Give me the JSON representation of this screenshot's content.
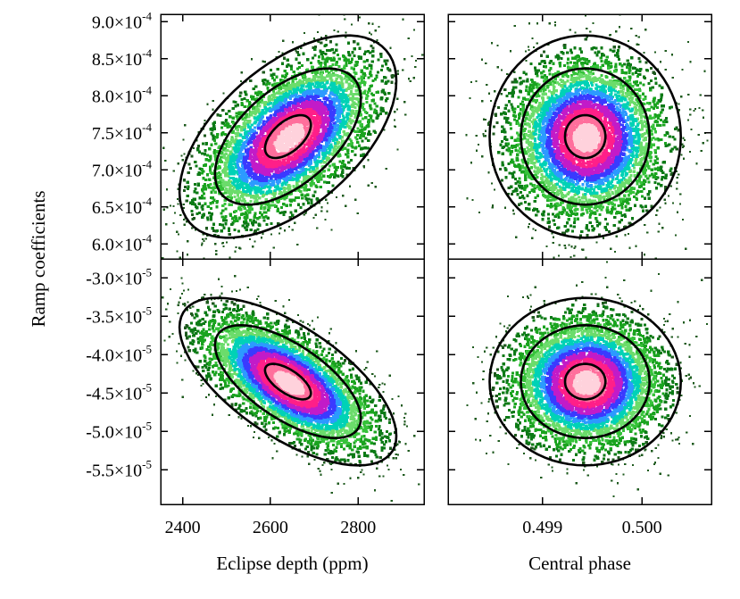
{
  "chart_data": {
    "type": "scatter",
    "subtype": "2D posterior density (MCMC correlation plots) with confidence contours",
    "ylabel": "Ramp coefficients",
    "xlabels": [
      "Eclipse depth (ppm)",
      "Central phase"
    ],
    "x_axes": [
      {
        "label": "Eclipse depth (ppm)",
        "range": [
          2350,
          2950
        ],
        "ticks": [
          2400,
          2600,
          2800
        ],
        "tick_labels": [
          "2400",
          "2600",
          "2800"
        ]
      },
      {
        "label": "Central phase",
        "range": [
          0.49805,
          0.5007
        ],
        "ticks": [
          0.499,
          0.5
        ],
        "tick_labels": [
          "0.499",
          "0.500"
        ]
      }
    ],
    "y_axes": [
      {
        "range": [
          0.00058,
          0.00091
        ],
        "ticks": [
          0.0006,
          0.00065,
          0.0007,
          0.00075,
          0.0008,
          0.00085,
          0.0009
        ],
        "tick_labels": [
          {
            "m": "6.0×10",
            "e": "-4"
          },
          {
            "m": "6.5×10",
            "e": "-4"
          },
          {
            "m": "7.0×10",
            "e": "-4"
          },
          {
            "m": "7.5×10",
            "e": "-4"
          },
          {
            "m": "8.0×10",
            "e": "-4"
          },
          {
            "m": "8.5×10",
            "e": "-4"
          },
          {
            "m": "9.0×10",
            "e": "-4"
          }
        ]
      },
      {
        "range": [
          -5.95e-05,
          -2.75e-05
        ],
        "ticks": [
          -5.5e-05,
          -5e-05,
          -4.5e-05,
          -4e-05,
          -3.5e-05,
          -3e-05
        ],
        "tick_labels": [
          {
            "m": "-5.5×10",
            "e": "-5"
          },
          {
            "m": "-5.0×10",
            "e": "-5"
          },
          {
            "m": "-4.5×10",
            "e": "-5"
          },
          {
            "m": "-4.0×10",
            "e": "-5"
          },
          {
            "m": "-3.5×10",
            "e": "-5"
          },
          {
            "m": "-3.0×10",
            "e": "-5"
          }
        ]
      }
    ],
    "colormap": [
      "#1e5a1e",
      "#0c7a16",
      "#1aa31f",
      "#36c23a",
      "#6bdc6b",
      "#00d2b6",
      "#2c9aff",
      "#3a3aff",
      "#c21bc8",
      "#ff1f88",
      "#ff6f9c",
      "#ffd2dc"
    ],
    "contour_color": "#000000",
    "panels": [
      {
        "row": 0,
        "col": 0,
        "x_param": "Eclipse depth (ppm)",
        "y_param": "ramp coefficient 1",
        "mean": [
          2640,
          0.000745
        ],
        "sd": [
          95,
          5.25e-05
        ],
        "correlation": 0.55
      },
      {
        "row": 0,
        "col": 1,
        "x_param": "Central phase",
        "y_param": "ramp coefficient 1",
        "mean": [
          0.49943,
          0.000745
        ],
        "sd": [
          0.00037,
          5.25e-05
        ],
        "correlation": 0.0
      },
      {
        "row": 1,
        "col": 0,
        "x_param": "Eclipse depth (ppm)",
        "y_param": "ramp coefficient 2",
        "mean": [
          2640,
          -4.35e-05
        ],
        "sd": [
          95,
          4.2e-06
        ],
        "correlation": -0.65
      },
      {
        "row": 1,
        "col": 1,
        "x_param": "Central phase",
        "y_param": "ramp coefficient 2",
        "mean": [
          0.49943,
          -4.35e-05
        ],
        "sd": [
          0.00037,
          4.2e-06
        ],
        "correlation": 0.0
      }
    ],
    "contour_levels_sigma": [
      0.55,
      1.75,
      2.6
    ],
    "grid": false,
    "legend": "none"
  }
}
